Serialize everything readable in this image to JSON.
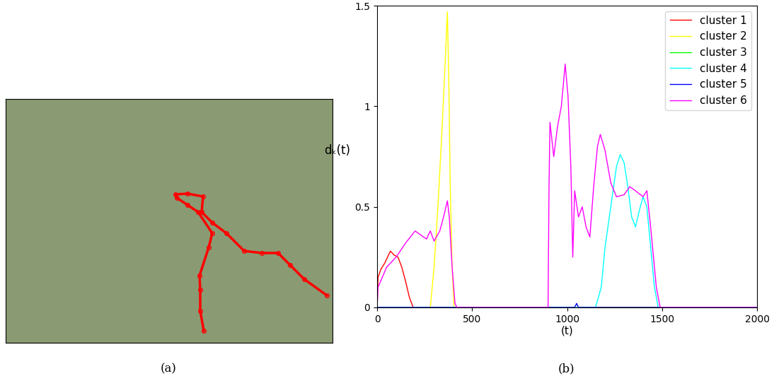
{
  "chart_data": [
    {
      "type": "line",
      "caption": "(a)",
      "tick_labels": false,
      "color": "#ff0000",
      "marker": "o",
      "xlim": [
        0,
        462
      ],
      "ylim": [
        345,
        0
      ],
      "x": [
        280,
        275,
        275,
        274,
        287,
        292,
        272,
        257,
        242,
        240,
        257,
        279,
        277,
        292,
        312,
        337,
        362,
        385,
        402,
        422,
        454
      ],
      "values": [
        328,
        300,
        270,
        250,
        210,
        190,
        160,
        150,
        140,
        135,
        134,
        138,
        160,
        175,
        190,
        215,
        218,
        218,
        235,
        255,
        278
      ]
    },
    {
      "type": "line",
      "caption": "(b)",
      "xlabel": "(t)",
      "ylabel": "dₖ(t)",
      "xlim": [
        0,
        2000
      ],
      "ylim": [
        0,
        1.5
      ],
      "xticks": [
        0,
        500,
        1000,
        1500,
        2000
      ],
      "yticks": [
        0,
        0.5,
        1,
        1.5
      ],
      "legend": "upper right",
      "series": [
        {
          "name": "cluster 1",
          "color": "#ff0000",
          "x": [
            0,
            5,
            20,
            40,
            70,
            90,
            110,
            130,
            150,
            170,
            190,
            2000
          ],
          "values": [
            0,
            0.15,
            0.19,
            0.22,
            0.28,
            0.26,
            0.25,
            0.2,
            0.13,
            0.05,
            0,
            0
          ]
        },
        {
          "name": "cluster 2",
          "color": "#ffff00",
          "x": [
            0,
            280,
            300,
            320,
            340,
            360,
            370,
            378,
            385,
            395,
            405,
            2000
          ],
          "values": [
            0,
            0,
            0.2,
            0.5,
            0.85,
            1.25,
            1.47,
            1.1,
            0.6,
            0.2,
            0,
            0
          ]
        },
        {
          "name": "cluster 3",
          "color": "#00ff00",
          "x": [
            0,
            2000
          ],
          "values": [
            0,
            0
          ]
        },
        {
          "name": "cluster 4",
          "color": "#00ffff",
          "x": [
            0,
            1150,
            1180,
            1200,
            1230,
            1260,
            1280,
            1300,
            1320,
            1340,
            1360,
            1380,
            1400,
            1420,
            1440,
            1460,
            1480,
            2000
          ],
          "values": [
            0,
            0,
            0.1,
            0.3,
            0.5,
            0.7,
            0.76,
            0.72,
            0.6,
            0.45,
            0.4,
            0.48,
            0.55,
            0.5,
            0.3,
            0.1,
            0,
            0
          ]
        },
        {
          "name": "cluster 5",
          "color": "#0000ff",
          "x": [
            0,
            1040,
            1050,
            1060,
            2000
          ],
          "values": [
            0,
            0,
            0.02,
            0,
            0
          ]
        },
        {
          "name": "cluster 6",
          "color": "#ff00ff",
          "x": [
            0,
            5,
            50,
            100,
            150,
            200,
            230,
            260,
            280,
            300,
            330,
            350,
            370,
            380,
            395,
            410,
            420,
            900,
            905,
            910,
            930,
            950,
            970,
            990,
            1005,
            1020,
            1030,
            1040,
            1060,
            1080,
            1100,
            1120,
            1140,
            1160,
            1175,
            1200,
            1230,
            1260,
            1300,
            1330,
            1360,
            1400,
            1420,
            1440,
            1470,
            1490,
            2000
          ],
          "values": [
            0,
            0.1,
            0.2,
            0.25,
            0.32,
            0.38,
            0.36,
            0.34,
            0.38,
            0.33,
            0.38,
            0.45,
            0.53,
            0.45,
            0.2,
            0.02,
            0,
            0,
            0.6,
            0.92,
            0.75,
            0.9,
            1.0,
            1.21,
            1.05,
            0.7,
            0.25,
            0.58,
            0.45,
            0.5,
            0.4,
            0.35,
            0.6,
            0.8,
            0.86,
            0.78,
            0.62,
            0.55,
            0.56,
            0.6,
            0.58,
            0.55,
            0.58,
            0.4,
            0.1,
            0,
            0
          ]
        }
      ]
    }
  ]
}
